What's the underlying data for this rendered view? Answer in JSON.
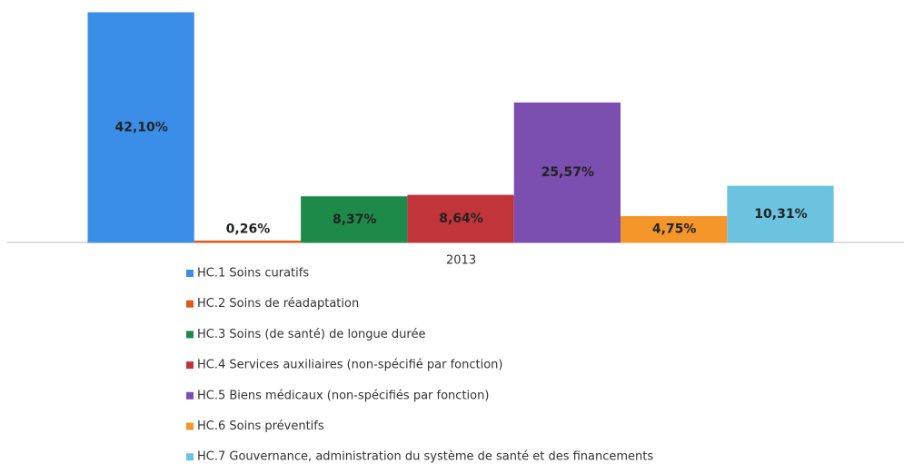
{
  "chart_data": {
    "type": "bar",
    "categories": [
      "2013"
    ],
    "series": [
      {
        "name": "HC.1 Soins curatifs",
        "color": "#3b8ee8",
        "values": [
          42.1
        ],
        "value_labels": [
          "42,10%"
        ]
      },
      {
        "name": "HC.2 Soins de réadaptation",
        "color": "#e05a1a",
        "values": [
          0.26
        ],
        "value_labels": [
          "0,26%"
        ]
      },
      {
        "name": "HC.3 Soins (de santé) de longue durée",
        "color": "#1e8a4a",
        "values": [
          8.37
        ],
        "value_labels": [
          "8,37%"
        ]
      },
      {
        "name": "HC.4 Services auxiliaires (non-spécifié par fonction)",
        "color": "#c0343a",
        "values": [
          8.64
        ],
        "value_labels": [
          "8,64%"
        ]
      },
      {
        "name": "HC.5 Biens médicaux (non-spécifiés par fonction)",
        "color": "#7b4fb0",
        "values": [
          25.57
        ],
        "value_labels": [
          "25,57%"
        ]
      },
      {
        "name": "HC.6 Soins préventifs",
        "color": "#f5962a",
        "values": [
          4.75
        ],
        "value_labels": [
          "4,75%"
        ]
      },
      {
        "name": "HC.7 Gouvernance, administration du système de santé et des financements",
        "color": "#6cc3e0",
        "values": [
          10.31
        ],
        "value_labels": [
          "10,31%"
        ]
      }
    ]
  }
}
